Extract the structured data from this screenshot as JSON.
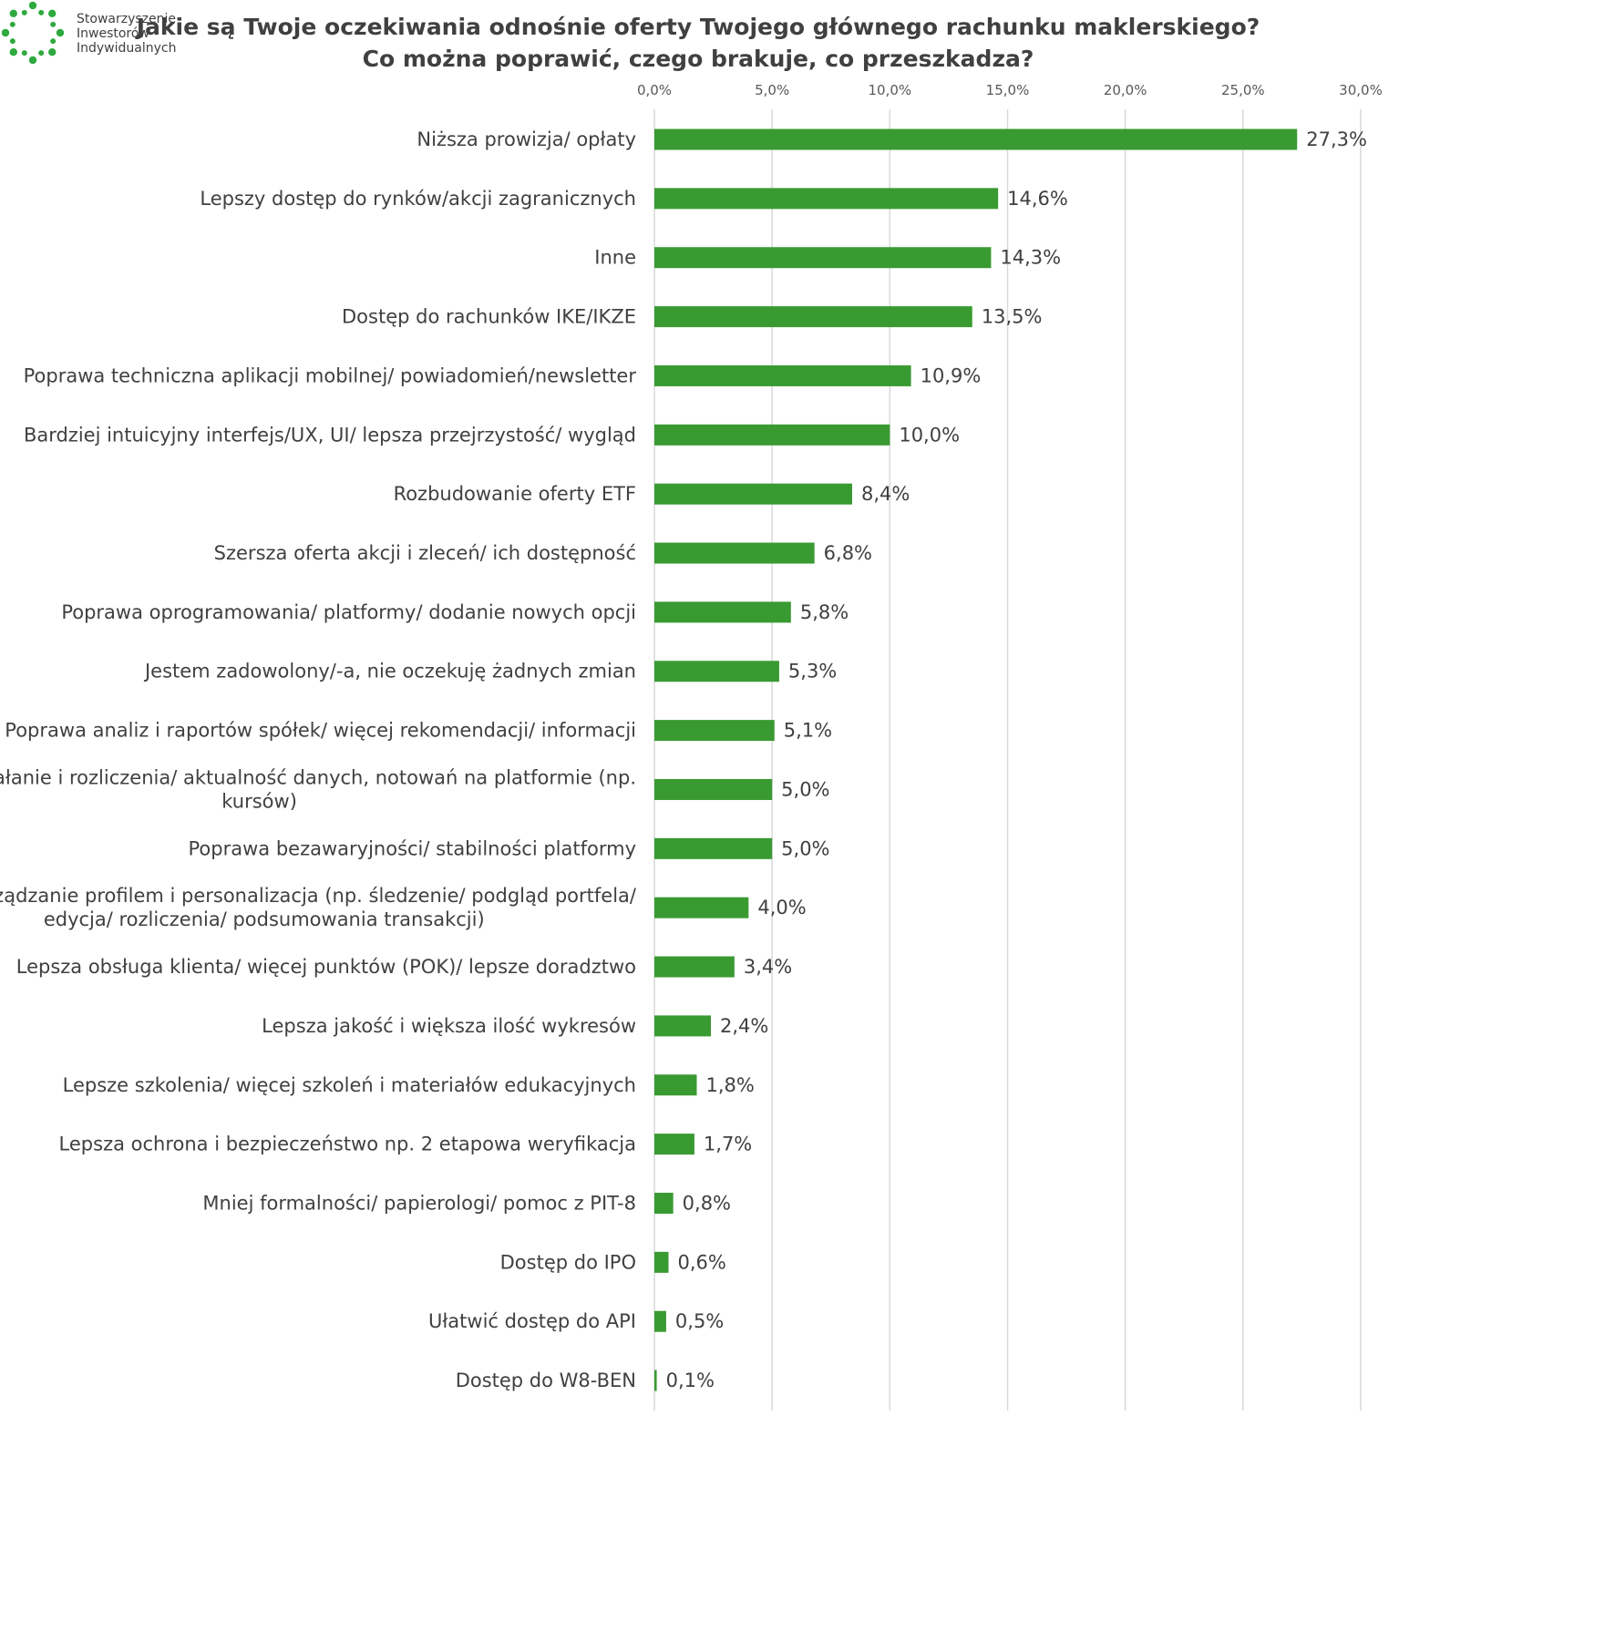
{
  "logo": {
    "lines": [
      "Stowarzyszenie",
      "Inwestorów",
      "Indywidualnych"
    ],
    "color": "#2eaa3f"
  },
  "chart_data": {
    "type": "bar",
    "orientation": "horizontal",
    "title_lines": [
      "Jakie są Twoje oczekiwania odnośnie oferty Twojego głównego rachunku maklerskiego?",
      "Co można poprawić, czego brakuje, co przeszkadza?"
    ],
    "xlabel": "",
    "ylabel": "",
    "xlim": [
      0,
      30
    ],
    "ticks": [
      "0,0%",
      "5,0%",
      "10,0%",
      "15,0%",
      "20,0%",
      "25,0%",
      "30,0%"
    ],
    "grid": true,
    "bar_color": "#3a9a32",
    "categories": [
      [
        "Niższa prowizja/ opłaty"
      ],
      [
        "Lepszy dostęp do rynków/akcji zagranicznych"
      ],
      [
        "Inne"
      ],
      [
        "Dostęp do rachunków IKE/IKZE"
      ],
      [
        "Poprawa techniczna aplikacji mobilnej/ powiadomień/newsletter"
      ],
      [
        "Bardziej intuicyjny interfejs/UX, UI/ lepsza przejrzystość/ wygląd"
      ],
      [
        "Rozbudowanie oferty ETF"
      ],
      [
        "Szersza oferta akcji i zleceń/ ich dostępność"
      ],
      [
        "Poprawa oprogramowania/ platformy/ dodanie nowych opcji"
      ],
      [
        "Jestem zadowolony/-a, nie oczekuję żadnych zmian"
      ],
      [
        "Poprawa analiz i raportów spółek/ więcej rekomendacji/ informacji"
      ],
      [
        "Szybsze działanie i rozliczenia/ aktualność danych, notowań na platformie (np.",
        "kursów)"
      ],
      [
        "Poprawa bezawaryjności/ stabilności platformy"
      ],
      [
        "Lepsze zarządzanie profilem i personalizacja (np. śledzenie/ podgląd portfela/",
        "edycja/ rozliczenia/ podsumowania transakcji)"
      ],
      [
        "Lepsza obsługa klienta/ więcej punktów (POK)/ lepsze doradztwo"
      ],
      [
        "Lepsza jakość i większa ilość wykresów"
      ],
      [
        "Lepsze szkolenia/ więcej szkoleń i materiałów edukacyjnych"
      ],
      [
        "Lepsza ochrona i bezpieczeństwo np. 2 etapowa weryfikacja"
      ],
      [
        "Mniej formalności/ papierologi/  pomoc z  PIT-8"
      ],
      [
        "Dostęp do IPO"
      ],
      [
        "Ułatwić dostęp do API"
      ],
      [
        "Dostęp do W8-BEN"
      ]
    ],
    "values": [
      27.3,
      14.6,
      14.3,
      13.5,
      10.9,
      10.0,
      8.4,
      6.8,
      5.8,
      5.3,
      5.1,
      5.0,
      5.0,
      4.0,
      3.4,
      2.4,
      1.8,
      1.7,
      0.8,
      0.6,
      0.5,
      0.1
    ],
    "value_labels": [
      "27,3%",
      "14,6%",
      "14,3%",
      "13,5%",
      "10,9%",
      "10,0%",
      "8,4%",
      "6,8%",
      "5,8%",
      "5,3%",
      "5,1%",
      "5,0%",
      "5,0%",
      "4,0%",
      "3,4%",
      "2,4%",
      "1,8%",
      "1,7%",
      "0,8%",
      "0,6%",
      "0,5%",
      "0,1%"
    ]
  }
}
